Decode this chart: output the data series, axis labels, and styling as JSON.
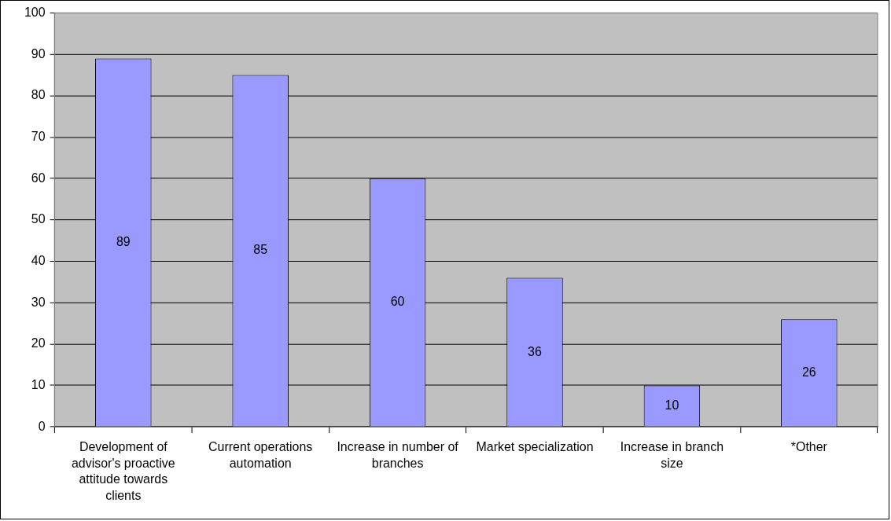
{
  "chart_data": {
    "type": "bar",
    "categories": [
      "Development of advisor's proactive attitude towards clients",
      "Current operations automation",
      "Increase in number of branches",
      "Market specialization",
      "Increase in branch size",
      "*Other"
    ],
    "values": [
      89,
      85,
      60,
      36,
      10,
      26
    ],
    "color": "#9999ff",
    "ylim": [
      0,
      100
    ],
    "yticks": [
      0,
      10,
      20,
      30,
      40,
      50,
      60,
      70,
      80,
      90,
      100
    ],
    "grid": "y",
    "legend": false,
    "data_labels": true
  }
}
